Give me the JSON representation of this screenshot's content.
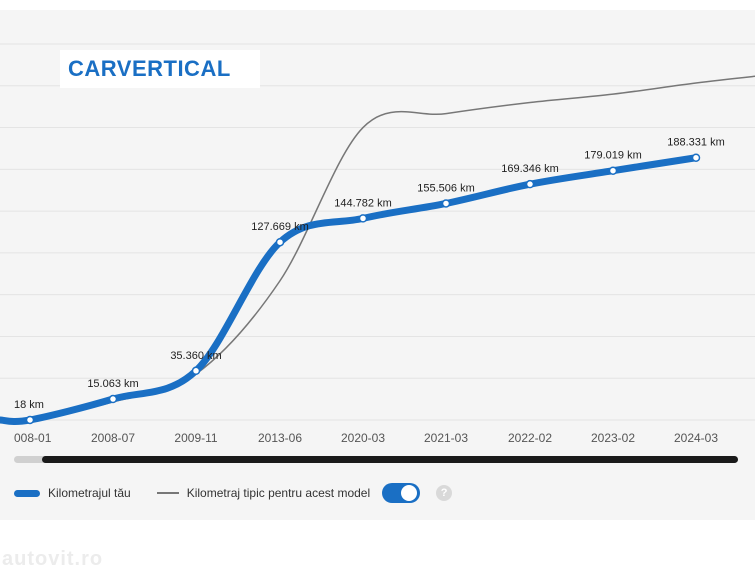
{
  "logo": {
    "text": "CARVERTICAL",
    "color": "#1a6fc4"
  },
  "watermark": {
    "text": "autovit.ro"
  },
  "legend": {
    "own_label": "Kilometrajul tău",
    "typical_label": "Kilometraj tipic pentru acest model",
    "toggle_on": true,
    "help_text": "?"
  },
  "colors": {
    "own_line": "#1a6fc4",
    "typical_line": "#777777",
    "grid": "#e4e4e4",
    "panel": "#f5f5f5"
  },
  "chart_data": {
    "type": "line",
    "x_ticks": [
      "008-01",
      "2008-07",
      "2009-11",
      "2013-06",
      "2020-03",
      "2021-03",
      "2022-02",
      "2023-02",
      "2024-03"
    ],
    "grid": true,
    "series": [
      {
        "name": "Kilometrajul tău",
        "values": [
          18,
          15063,
          35360,
          127669,
          144782,
          155506,
          169346,
          179019,
          188331
        ],
        "labels": [
          "18 km",
          "15.063 km",
          "35.360 km",
          "127.669 km",
          "144.782 km",
          "155.506 km",
          "169.346 km",
          "179.019 km",
          "188.331 km"
        ]
      },
      {
        "name": "Kilometraj tipic pentru acest model",
        "values": [
          0,
          13000,
          33000,
          100000,
          210000,
          220000,
          228000,
          234000,
          242000
        ]
      }
    ],
    "ylim": [
      0,
      270000
    ]
  }
}
